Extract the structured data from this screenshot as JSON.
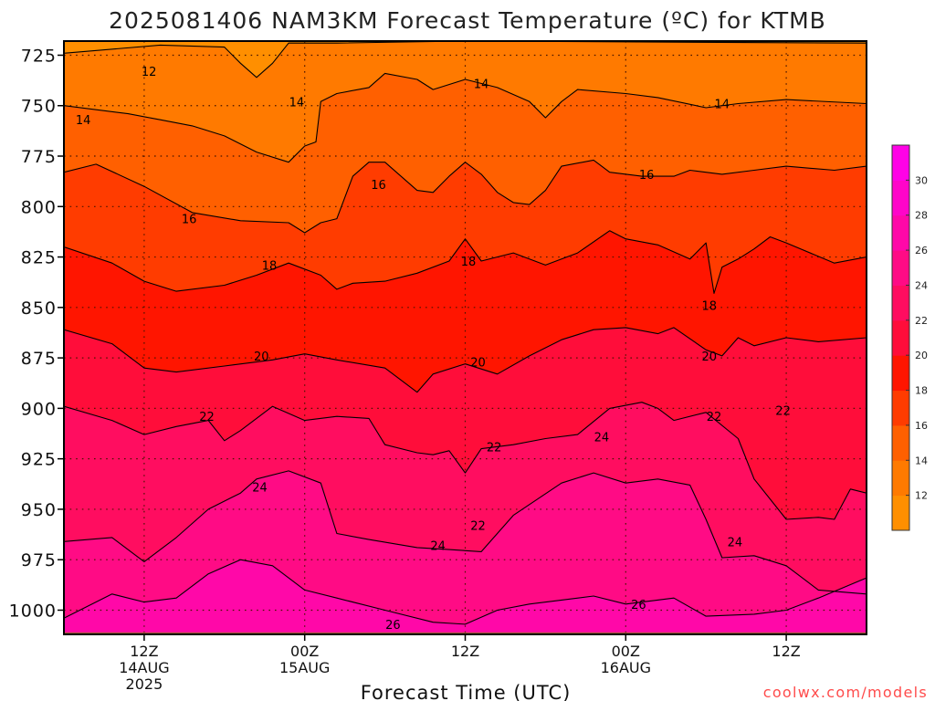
{
  "chart_data": {
    "type": "heatmap",
    "title": "2025081406 NAM3KM Forecast Temperature (ºC) for KTMB",
    "xlabel": "Forecast Time (UTC)",
    "ylabel": "",
    "credit": "coolwx.com/models",
    "xlim": [
      -5,
      45
    ],
    "ylim": [
      1012,
      718
    ],
    "y_ticks": [
      725,
      750,
      775,
      800,
      825,
      850,
      875,
      900,
      925,
      950,
      975,
      1000
    ],
    "x_ticks": [
      {
        "h": 0,
        "lines": [
          "12Z",
          "14AUG",
          "2025"
        ]
      },
      {
        "h": 10,
        "lines": [
          "00Z",
          "15AUG"
        ]
      },
      {
        "h": 20,
        "lines": [
          "12Z"
        ]
      },
      {
        "h": 30,
        "lines": [
          "00Z",
          "16AUG"
        ]
      },
      {
        "h": 40,
        "lines": [
          "12Z"
        ]
      }
    ],
    "surface_pressure": 1011,
    "surface_color": "#a25938",
    "colorbar": {
      "levels": [
        12,
        14,
        16,
        18,
        20,
        22,
        24,
        26,
        28,
        30
      ],
      "labels": [
        "12",
        "14",
        "16",
        "18",
        "20",
        "22",
        "24",
        "26",
        "28",
        "30"
      ],
      "colors": [
        "#ff8f00",
        "#ff7a00",
        "#ff6000",
        "#ff3c00",
        "#ff1500",
        "#ff0d3a",
        "#ff0d60",
        "#ff0b85",
        "#ff08a8",
        "#ff05c9",
        "#ff02e6"
      ]
    },
    "contour_levels": [
      12,
      14,
      16,
      18,
      20,
      22,
      24,
      26
    ],
    "isotherms": [
      {
        "t": 12,
        "p": [
          [
            -5,
            724
          ],
          [
            1,
            720
          ],
          [
            5,
            721
          ],
          [
            6,
            729
          ],
          [
            7,
            736
          ],
          [
            8,
            729
          ],
          [
            9,
            719
          ],
          [
            12,
            719
          ],
          [
            20,
            718
          ],
          [
            45,
            719
          ]
        ]
      },
      {
        "t": 14,
        "p": [
          [
            -5,
            750
          ],
          [
            -1,
            754
          ],
          [
            1,
            757
          ],
          [
            3,
            760
          ],
          [
            5,
            765
          ],
          [
            7,
            773
          ],
          [
            9,
            778
          ],
          [
            10,
            770
          ],
          [
            10.7,
            768
          ],
          [
            11,
            748
          ],
          [
            12,
            744
          ],
          [
            14,
            741
          ],
          [
            15,
            734
          ],
          [
            17,
            737
          ],
          [
            18,
            742
          ],
          [
            20,
            737
          ],
          [
            22,
            741
          ],
          [
            24,
            748
          ],
          [
            25,
            756
          ],
          [
            26,
            748
          ],
          [
            27,
            742
          ],
          [
            30,
            744
          ],
          [
            32,
            746
          ],
          [
            35,
            751
          ],
          [
            37,
            749
          ],
          [
            40,
            747
          ],
          [
            45,
            749
          ]
        ]
      },
      {
        "t": 16,
        "p": [
          [
            -5,
            783
          ],
          [
            -3,
            779
          ],
          [
            0,
            790
          ],
          [
            3,
            803
          ],
          [
            6,
            807
          ],
          [
            9,
            808
          ],
          [
            10,
            813
          ],
          [
            11,
            808
          ],
          [
            12,
            806
          ],
          [
            13,
            785
          ],
          [
            14,
            778
          ],
          [
            15,
            778
          ],
          [
            17,
            792
          ],
          [
            18,
            793
          ],
          [
            19,
            785
          ],
          [
            20,
            778
          ],
          [
            21,
            784
          ],
          [
            22,
            793
          ],
          [
            23,
            798
          ],
          [
            24,
            799
          ],
          [
            25,
            792
          ],
          [
            26,
            780
          ],
          [
            28,
            777
          ],
          [
            29,
            783
          ],
          [
            31,
            785
          ],
          [
            33,
            785
          ],
          [
            34,
            782
          ],
          [
            36,
            784
          ],
          [
            38,
            782
          ],
          [
            40,
            780
          ],
          [
            43,
            782
          ],
          [
            45,
            780
          ]
        ]
      },
      {
        "t": 18,
        "p": [
          [
            -5,
            820
          ],
          [
            -2,
            828
          ],
          [
            0,
            837
          ],
          [
            2,
            842
          ],
          [
            5,
            839
          ],
          [
            7,
            834
          ],
          [
            9,
            828
          ],
          [
            11,
            834
          ],
          [
            12,
            841
          ],
          [
            13,
            838
          ],
          [
            15,
            837
          ],
          [
            17,
            833
          ],
          [
            19,
            827
          ],
          [
            20,
            816
          ],
          [
            21,
            827
          ],
          [
            23,
            823
          ],
          [
            25,
            829
          ],
          [
            27,
            823
          ],
          [
            29,
            812
          ],
          [
            30,
            816
          ],
          [
            32,
            819
          ],
          [
            34,
            826
          ],
          [
            35,
            818
          ],
          [
            35.5,
            843
          ],
          [
            36,
            830
          ],
          [
            37,
            826
          ],
          [
            38,
            821
          ],
          [
            39,
            815
          ],
          [
            40,
            818
          ],
          [
            43,
            828
          ],
          [
            45,
            825
          ]
        ]
      },
      {
        "t": 20,
        "p": [
          [
            -5,
            861
          ],
          [
            -2,
            868
          ],
          [
            0,
            880
          ],
          [
            2,
            882
          ],
          [
            5,
            879
          ],
          [
            8,
            876
          ],
          [
            10,
            873
          ],
          [
            12,
            876
          ],
          [
            15,
            880
          ],
          [
            17,
            892
          ],
          [
            18,
            883
          ],
          [
            20,
            878
          ],
          [
            22,
            883
          ],
          [
            24,
            874
          ],
          [
            26,
            866
          ],
          [
            28,
            861
          ],
          [
            30,
            860
          ],
          [
            32,
            863
          ],
          [
            33,
            860
          ],
          [
            35,
            871
          ],
          [
            36,
            874
          ],
          [
            37,
            865
          ],
          [
            38,
            869
          ],
          [
            40,
            865
          ],
          [
            42,
            867
          ],
          [
            45,
            865
          ]
        ]
      },
      {
        "t": 22,
        "p": [
          [
            -5,
            899
          ],
          [
            -2,
            906
          ],
          [
            0,
            913
          ],
          [
            2,
            909
          ],
          [
            4,
            906
          ],
          [
            5,
            916
          ],
          [
            6,
            911
          ],
          [
            8,
            899
          ],
          [
            10,
            906
          ],
          [
            12,
            904
          ],
          [
            14,
            905
          ],
          [
            15,
            918
          ],
          [
            17,
            922
          ],
          [
            18,
            923
          ],
          [
            19,
            921
          ],
          [
            20,
            932
          ],
          [
            21,
            920
          ],
          [
            23,
            918
          ],
          [
            25,
            915
          ],
          [
            27,
            913
          ],
          [
            29,
            900
          ],
          [
            31,
            897
          ],
          [
            32,
            900
          ],
          [
            33,
            906
          ],
          [
            35,
            902
          ],
          [
            37,
            915
          ],
          [
            38,
            935
          ],
          [
            40,
            955
          ],
          [
            42,
            954
          ],
          [
            43,
            955
          ],
          [
            44,
            940
          ],
          [
            45,
            942
          ]
        ]
      },
      {
        "t": 24,
        "p": [
          [
            -5,
            966
          ],
          [
            -2,
            964
          ],
          [
            0,
            976
          ],
          [
            2,
            964
          ],
          [
            4,
            950
          ],
          [
            6,
            942
          ],
          [
            7,
            935
          ],
          [
            9,
            931
          ],
          [
            11,
            937
          ],
          [
            12,
            962
          ],
          [
            14,
            965
          ],
          [
            17,
            969
          ],
          [
            19,
            970
          ],
          [
            21,
            971
          ],
          [
            23,
            953
          ],
          [
            26,
            937
          ],
          [
            28,
            932
          ],
          [
            30,
            937
          ],
          [
            32,
            935
          ],
          [
            34,
            938
          ],
          [
            35,
            955
          ],
          [
            36,
            974
          ],
          [
            38,
            973
          ],
          [
            40,
            978
          ],
          [
            42,
            990
          ],
          [
            45,
            992
          ]
        ]
      },
      {
        "t": 26,
        "p": [
          [
            -5,
            1004
          ],
          [
            -2,
            992
          ],
          [
            0,
            996
          ],
          [
            2,
            994
          ],
          [
            4,
            982
          ],
          [
            6,
            975
          ],
          [
            8,
            978
          ],
          [
            10,
            990
          ],
          [
            12,
            994
          ],
          [
            15,
            1000
          ],
          [
            18,
            1006
          ],
          [
            20,
            1007
          ],
          [
            22,
            1000
          ],
          [
            24,
            997
          ],
          [
            26,
            995
          ],
          [
            28,
            993
          ],
          [
            30,
            997
          ],
          [
            33,
            994
          ],
          [
            35,
            1003
          ],
          [
            38,
            1002
          ],
          [
            40,
            1000
          ],
          [
            42,
            994
          ],
          [
            45,
            984
          ]
        ]
      }
    ],
    "labels": [
      {
        "t": "12",
        "x": 0.3,
        "y": 733
      },
      {
        "t": "14",
        "x": -3.8,
        "y": 757
      },
      {
        "t": "14",
        "x": 9.5,
        "y": 748
      },
      {
        "t": "14",
        "x": 21,
        "y": 739
      },
      {
        "t": "14",
        "x": 36,
        "y": 749
      },
      {
        "t": "16",
        "x": 2.8,
        "y": 806
      },
      {
        "t": "16",
        "x": 14.6,
        "y": 789
      },
      {
        "t": "16",
        "x": 31.3,
        "y": 784
      },
      {
        "t": "18",
        "x": 7.8,
        "y": 829
      },
      {
        "t": "18",
        "x": 20.2,
        "y": 827
      },
      {
        "t": "18",
        "x": 35.2,
        "y": 849
      },
      {
        "t": "20",
        "x": 7.3,
        "y": 874
      },
      {
        "t": "20",
        "x": 20.8,
        "y": 877
      },
      {
        "t": "20",
        "x": 35.2,
        "y": 874
      },
      {
        "t": "22",
        "x": 3.9,
        "y": 904
      },
      {
        "t": "22",
        "x": 21.8,
        "y": 919
      },
      {
        "t": "22",
        "x": 20.8,
        "y": 958
      },
      {
        "t": "22",
        "x": 35.5,
        "y": 904
      },
      {
        "t": "22",
        "x": 39.8,
        "y": 901
      },
      {
        "t": "24",
        "x": 7.2,
        "y": 939
      },
      {
        "t": "24",
        "x": 18.3,
        "y": 968
      },
      {
        "t": "24",
        "x": 28.5,
        "y": 914
      },
      {
        "t": "24",
        "x": 36.8,
        "y": 966
      },
      {
        "t": "26",
        "x": 15.5,
        "y": 1007
      },
      {
        "t": "26",
        "x": 30.8,
        "y": 997
      }
    ]
  }
}
